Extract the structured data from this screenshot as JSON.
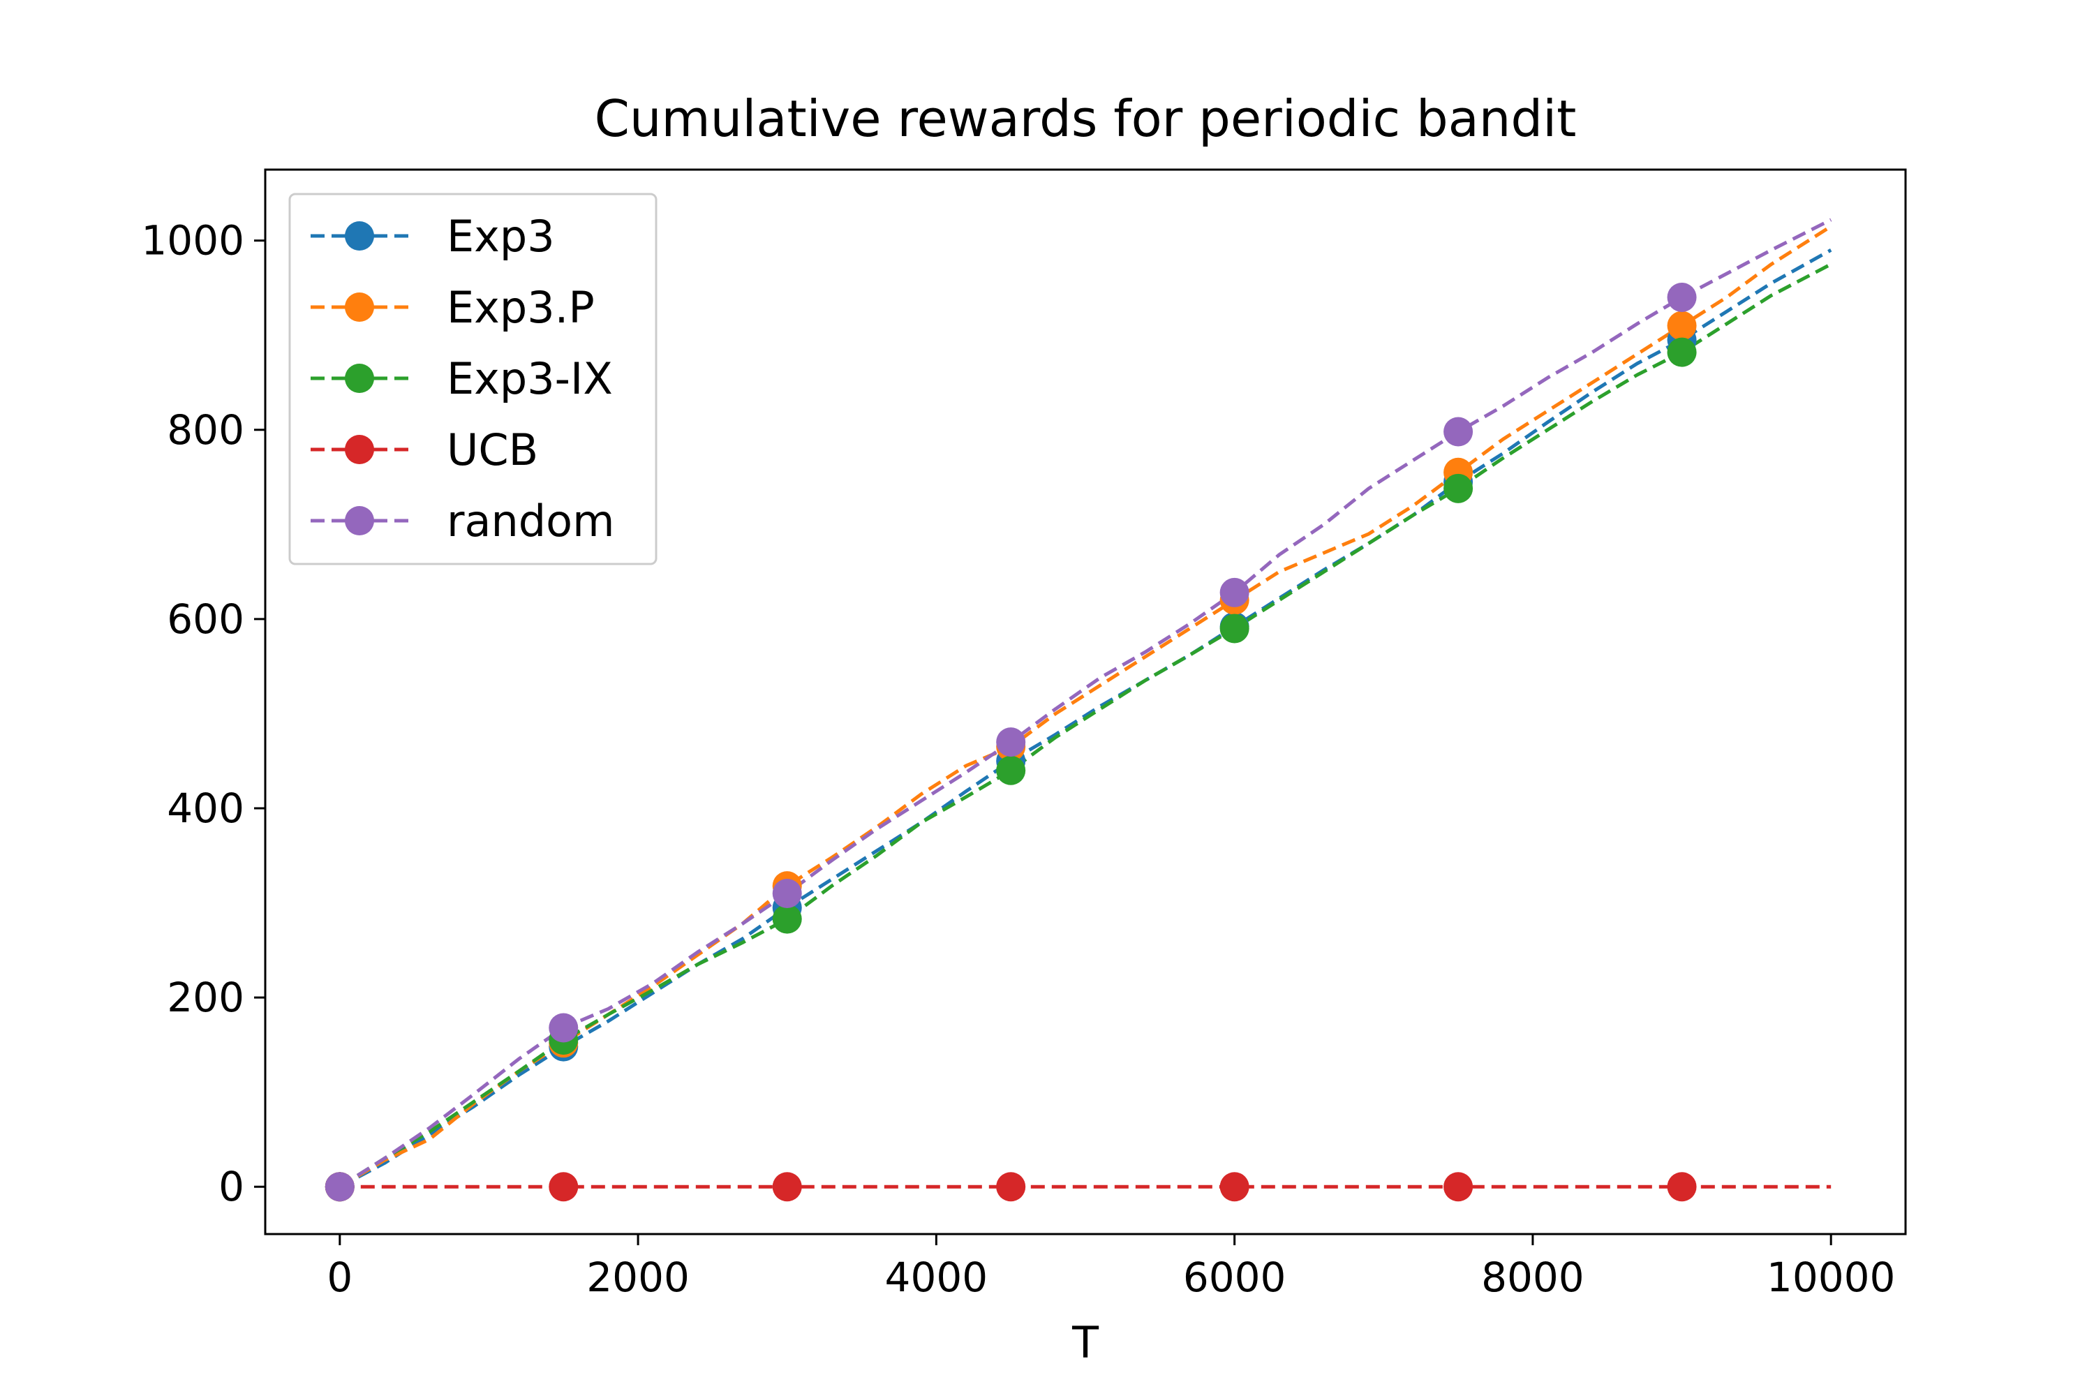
{
  "chart_data": {
    "type": "line",
    "title": "Cumulative rewards for periodic bandit",
    "xlabel": "T",
    "ylabel": "",
    "xlim": [
      -500,
      10500
    ],
    "ylim": [
      -50,
      1075
    ],
    "xticks": [
      0,
      2000,
      4000,
      6000,
      8000,
      10000
    ],
    "yticks": [
      0,
      200,
      400,
      600,
      800,
      1000
    ],
    "grid": false,
    "legend_position": "upper left",
    "line_style": "dashed",
    "marker_x": [
      0,
      1500,
      3000,
      4500,
      6000,
      7500,
      9000
    ],
    "x": [
      0,
      300,
      600,
      900,
      1200,
      1500,
      1800,
      2100,
      2400,
      2700,
      3000,
      3300,
      3600,
      3900,
      4200,
      4500,
      4800,
      5100,
      5400,
      5700,
      6000,
      6300,
      6600,
      6900,
      7200,
      7500,
      7800,
      8100,
      8400,
      8700,
      9000,
      9300,
      9600,
      10000
    ],
    "series": [
      {
        "name": "Exp3",
        "color": "#1f77b4",
        "values": [
          0,
          25,
          55,
          85,
          118,
          148,
          175,
          205,
          235,
          262,
          295,
          325,
          355,
          385,
          418,
          450,
          478,
          508,
          535,
          562,
          592,
          622,
          652,
          680,
          710,
          745,
          775,
          808,
          840,
          870,
          895,
          925,
          955,
          990
        ]
      },
      {
        "name": "Exp3.P",
        "color": "#ff7f0e",
        "values": [
          0,
          28,
          50,
          88,
          122,
          152,
          182,
          212,
          245,
          278,
          318,
          348,
          380,
          415,
          445,
          465,
          500,
          530,
          560,
          590,
          620,
          650,
          670,
          690,
          720,
          755,
          790,
          820,
          850,
          880,
          910,
          940,
          975,
          1015
        ]
      },
      {
        "name": "Exp3-IX",
        "color": "#2ca02c",
        "values": [
          0,
          30,
          58,
          90,
          122,
          155,
          182,
          208,
          235,
          258,
          283,
          318,
          350,
          385,
          412,
          440,
          475,
          505,
          535,
          562,
          590,
          620,
          650,
          680,
          710,
          738,
          770,
          800,
          830,
          858,
          882,
          912,
          942,
          975
        ]
      },
      {
        "name": "UCB",
        "color": "#d62728",
        "values": [
          0,
          0,
          0,
          0,
          0,
          0,
          0,
          0,
          0,
          0,
          0,
          0,
          0,
          0,
          0,
          0,
          0,
          0,
          0,
          0,
          0,
          0,
          0,
          0,
          0,
          0,
          0,
          0,
          0,
          0,
          0,
          0,
          0,
          0
        ]
      },
      {
        "name": "random",
        "color": "#9467bd",
        "values": [
          0,
          30,
          62,
          98,
          135,
          168,
          188,
          215,
          248,
          278,
          310,
          345,
          378,
          408,
          438,
          470,
          505,
          538,
          565,
          595,
          628,
          668,
          700,
          738,
          768,
          798,
          825,
          855,
          882,
          912,
          940,
          965,
          990,
          1022
        ]
      }
    ]
  }
}
